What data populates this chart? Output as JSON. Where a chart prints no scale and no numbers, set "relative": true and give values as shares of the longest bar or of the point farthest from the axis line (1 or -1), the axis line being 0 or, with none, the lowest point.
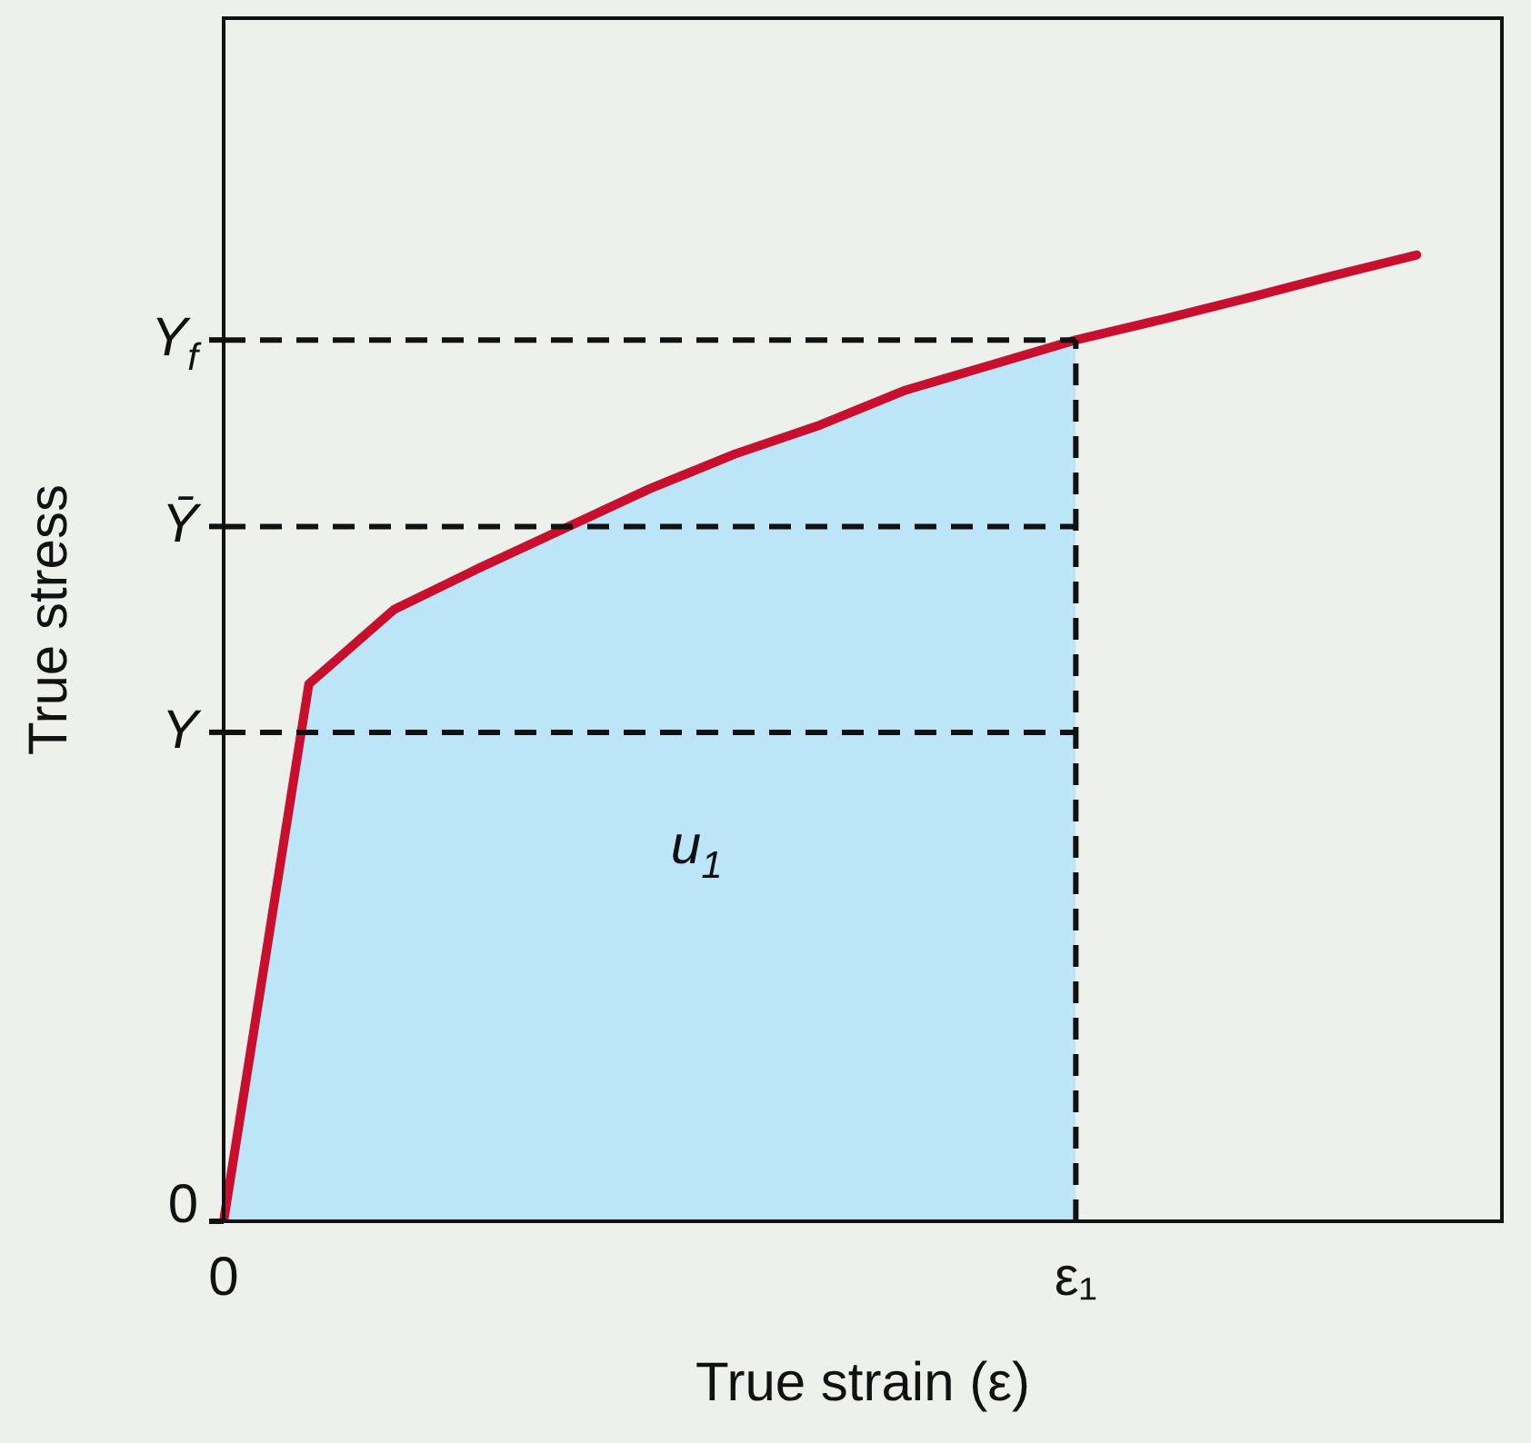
{
  "chart_data": {
    "type": "line",
    "xlabel": "True strain (ε)",
    "ylabel": "True stress",
    "relative": true,
    "categories": [
      "0",
      null,
      null,
      null,
      null,
      null,
      null,
      null,
      null,
      null,
      "ε₁",
      null,
      null,
      null,
      null,
      null
    ],
    "series": [
      {
        "type": "area",
        "color": "#bde5f8",
        "values": [
          0,
          0.556,
          0.633,
          0.676,
          0.717,
          0.758,
          0.794,
          0.824,
          0.86,
          0.886,
          0.912,
          null,
          null,
          null,
          null,
          null
        ]
      },
      {
        "type": "line",
        "color": "#c8102e",
        "values": [
          0,
          0.556,
          0.633,
          0.676,
          0.717,
          0.758,
          0.794,
          0.824,
          0.86,
          0.886,
          0.912,
          0.933,
          0.955,
          0.978,
          1,
          null
        ]
      }
    ],
    "ref_lines": [
      {
        "axis": "y",
        "value": 0,
        "label": "0"
      },
      {
        "axis": "y",
        "value": 0.506,
        "label": "Y",
        "line_style": "dashed"
      },
      {
        "axis": "y",
        "value": 0.719,
        "label": "Ȳ",
        "line_style": "dashed"
      },
      {
        "axis": "y",
        "value": 0.912,
        "label": "Y$_{f}$",
        "line_style": "dashed"
      },
      {
        "axis": "x",
        "value": "ε₁",
        "line_style": "dashed"
      }
    ],
    "annotations": [
      "u$_{1}$"
    ],
    "grid": false,
    "legend": false,
    "marker": "none",
    "line_style": "solid"
  }
}
